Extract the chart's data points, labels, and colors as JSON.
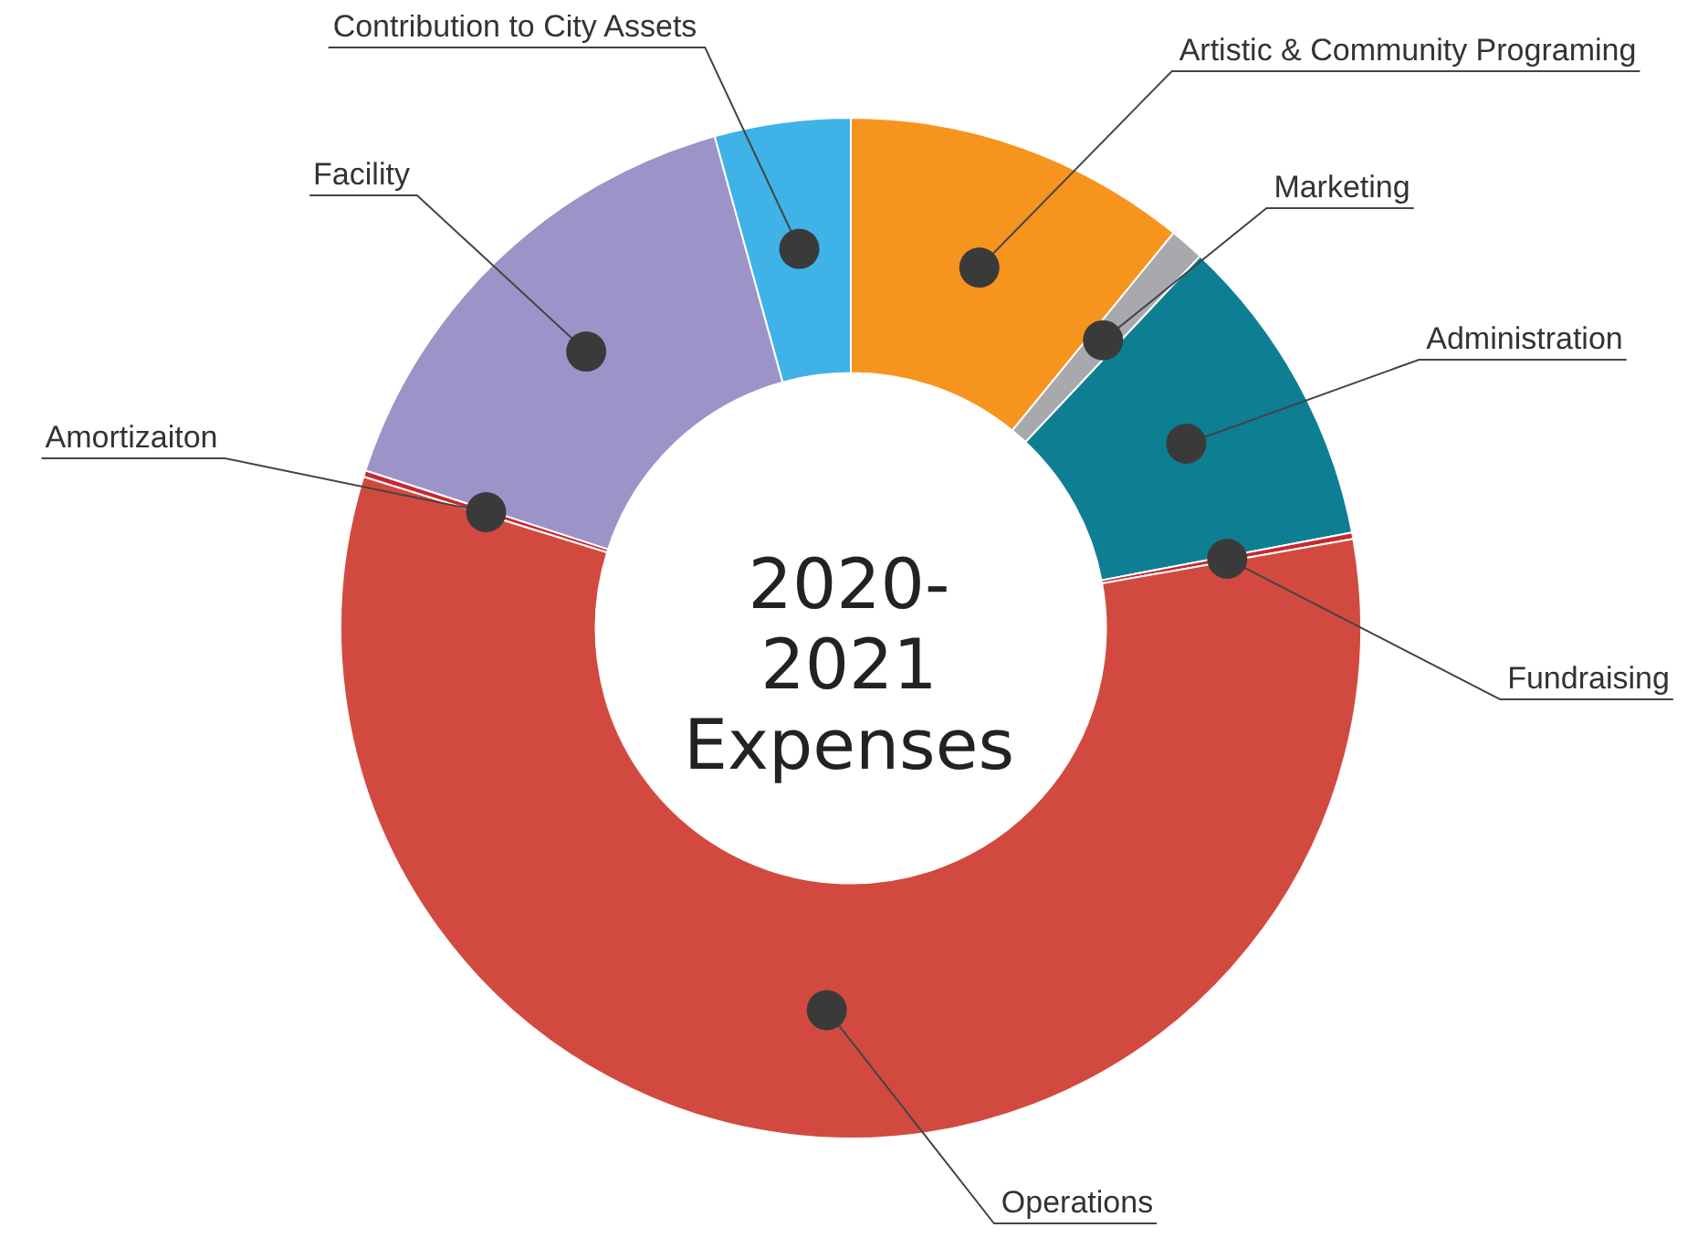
{
  "chart_data": {
    "type": "donut",
    "title": "2020-2021 Expenses",
    "categories": [
      "Artistic & Community Programing",
      "Marketing",
      "Administration",
      "Fundraising",
      "Operations",
      "Amortizaiton",
      "Facility",
      "Contribution to City Assets"
    ],
    "values": [
      10.9,
      1.1,
      10.0,
      0.2,
      57.6,
      0.2,
      15.7,
      4.3
    ],
    "colors": [
      "#f7941d",
      "#a7a9ac",
      "#0e7f93",
      "#c62a2f",
      "#d24a3f",
      "#c8282e",
      "#9c94c9",
      "#3fb2e8"
    ],
    "legend": false
  }
}
